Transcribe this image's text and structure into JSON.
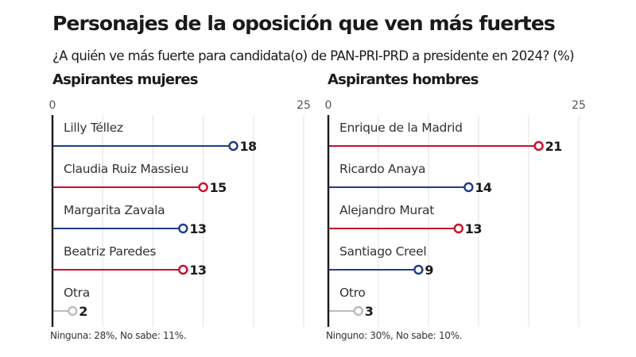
{
  "header": {
    "title": "Personajes de la oposición que ven más fuertes",
    "subtitle": "¿A quién ve más fuerte para candidata(o) de PAN-PRI-PRD a presidente en 2024?  (%)"
  },
  "colors": {
    "pan": "#1f3c88",
    "pri": "#c8102e",
    "other": "#bbbbbb",
    "grid": "#e2e2e2",
    "axis": "#1a1a1a"
  },
  "chart_data": [
    {
      "type": "bar",
      "subtype": "lollipop-horizontal",
      "title": "Aspirantes mujeres",
      "xlim": [
        0,
        25
      ],
      "tick_labels": [
        "0",
        "25"
      ],
      "gridlines": [
        0,
        5,
        10,
        15,
        20,
        25
      ],
      "categories": [
        "Lilly Téllez",
        "Claudia Ruiz Massieu",
        "Margarita Zavala",
        "Beatriz Paredes",
        "Otra"
      ],
      "values": [
        18,
        15,
        13,
        13,
        2
      ],
      "series_colors": [
        "pan",
        "pri",
        "pan",
        "pri",
        "other"
      ],
      "footnote": "Ninguna: 28%, No sabe: 11%."
    },
    {
      "type": "bar",
      "subtype": "lollipop-horizontal",
      "title": "Aspirantes hombres",
      "xlim": [
        0,
        25
      ],
      "tick_labels": [
        "0",
        "25"
      ],
      "gridlines": [
        0,
        5,
        10,
        15,
        20,
        25
      ],
      "categories": [
        "Enrique de la Madrid",
        "Ricardo Anaya",
        "Alejandro Murat",
        "Santiago Creel",
        "Otro"
      ],
      "values": [
        21,
        14,
        13,
        9,
        3
      ],
      "series_colors": [
        "pri",
        "pan",
        "pri",
        "pan",
        "other"
      ],
      "footnote": "Ninguno: 30%, No sabe: 10%."
    }
  ]
}
